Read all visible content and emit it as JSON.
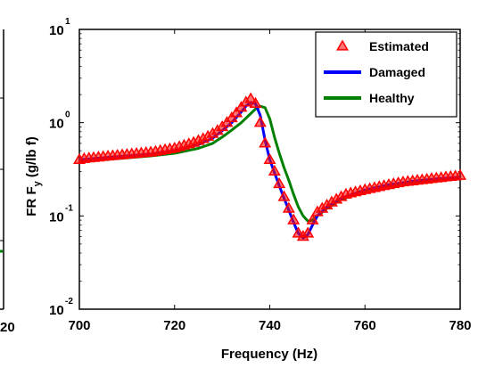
{
  "chart_data": {
    "type": "line",
    "scale": {
      "x": "linear",
      "y": "log"
    },
    "xlabel": "Frequency (Hz)",
    "ylabel": {
      "main": "FR F",
      "sub": "y",
      "unit": " (g/lb f)"
    },
    "xlim": [
      700,
      780
    ],
    "ylim": [
      0.01,
      10
    ],
    "x_ticks": [
      "700",
      "720",
      "740",
      "760",
      "780"
    ],
    "y_ticks": [
      {
        "base": "10",
        "exp": "-2"
      },
      {
        "base": "10",
        "exp": "-1"
      },
      {
        "base": "10",
        "exp": "0"
      },
      {
        "base": "10",
        "exp": "1"
      }
    ],
    "legend_position": "top-right",
    "grid": false,
    "series": [
      {
        "name": "Estimated",
        "style": "markers",
        "marker": "triangle",
        "color": "#ff0000",
        "x": [
          700,
          701,
          702,
          703,
          704,
          705,
          706,
          707,
          708,
          709,
          710,
          711,
          712,
          713,
          714,
          715,
          716,
          717,
          718,
          719,
          720,
          721,
          722,
          723,
          724,
          725,
          726,
          727,
          728,
          729,
          730,
          731,
          732,
          733,
          734,
          735,
          736,
          737,
          738,
          739,
          740,
          741,
          742,
          743,
          744,
          745,
          746,
          747,
          748,
          749,
          750,
          751,
          752,
          753,
          754,
          755,
          756,
          757,
          758,
          759,
          760,
          761,
          762,
          763,
          764,
          765,
          766,
          767,
          768,
          769,
          770,
          771,
          772,
          773,
          774,
          775,
          776,
          777,
          778,
          779,
          780
        ],
        "y": [
          0.4,
          0.41,
          0.415,
          0.42,
          0.425,
          0.43,
          0.435,
          0.44,
          0.445,
          0.45,
          0.455,
          0.46,
          0.465,
          0.47,
          0.475,
          0.48,
          0.49,
          0.5,
          0.51,
          0.52,
          0.53,
          0.55,
          0.57,
          0.59,
          0.61,
          0.64,
          0.67,
          0.71,
          0.76,
          0.82,
          0.9,
          1.0,
          1.12,
          1.27,
          1.45,
          1.65,
          1.8,
          1.6,
          1.0,
          0.6,
          0.4,
          0.3,
          0.22,
          0.16,
          0.12,
          0.09,
          0.065,
          0.06,
          0.065,
          0.09,
          0.11,
          0.12,
          0.13,
          0.14,
          0.15,
          0.16,
          0.17,
          0.175,
          0.18,
          0.185,
          0.19,
          0.195,
          0.2,
          0.205,
          0.21,
          0.215,
          0.22,
          0.225,
          0.23,
          0.233,
          0.236,
          0.24,
          0.243,
          0.246,
          0.25,
          0.253,
          0.256,
          0.26,
          0.263,
          0.266,
          0.27
        ]
      },
      {
        "name": "Damaged",
        "style": "line",
        "color": "#0000ff",
        "x": [
          700,
          705,
          710,
          715,
          720,
          725,
          728,
          730,
          732,
          734,
          735,
          736,
          737,
          738,
          739,
          740,
          741,
          742,
          743,
          744,
          745,
          746,
          747,
          748,
          749,
          750,
          752,
          755,
          760,
          765,
          770,
          775,
          780
        ],
        "y": [
          0.4,
          0.42,
          0.44,
          0.46,
          0.5,
          0.58,
          0.68,
          0.82,
          1.0,
          1.3,
          1.5,
          1.65,
          1.6,
          1.2,
          0.65,
          0.4,
          0.29,
          0.21,
          0.155,
          0.115,
          0.085,
          0.065,
          0.058,
          0.063,
          0.08,
          0.1,
          0.125,
          0.155,
          0.19,
          0.215,
          0.235,
          0.25,
          0.26
        ]
      },
      {
        "name": "Healthy",
        "style": "line",
        "color": "#008000",
        "x": [
          700,
          705,
          710,
          715,
          720,
          725,
          728,
          730,
          732,
          734,
          736,
          737,
          738,
          739,
          740,
          741,
          742,
          743,
          744,
          745,
          746,
          747,
          748,
          749,
          750,
          752,
          755,
          760,
          765,
          770,
          775,
          780
        ],
        "y": [
          0.38,
          0.4,
          0.42,
          0.44,
          0.47,
          0.53,
          0.6,
          0.7,
          0.83,
          1.0,
          1.25,
          1.4,
          1.5,
          1.45,
          1.1,
          0.7,
          0.47,
          0.33,
          0.24,
          0.17,
          0.125,
          0.1,
          0.088,
          0.09,
          0.1,
          0.12,
          0.15,
          0.185,
          0.21,
          0.23,
          0.245,
          0.255
        ]
      }
    ]
  },
  "left_fragment": {
    "tick_stub": "20"
  }
}
